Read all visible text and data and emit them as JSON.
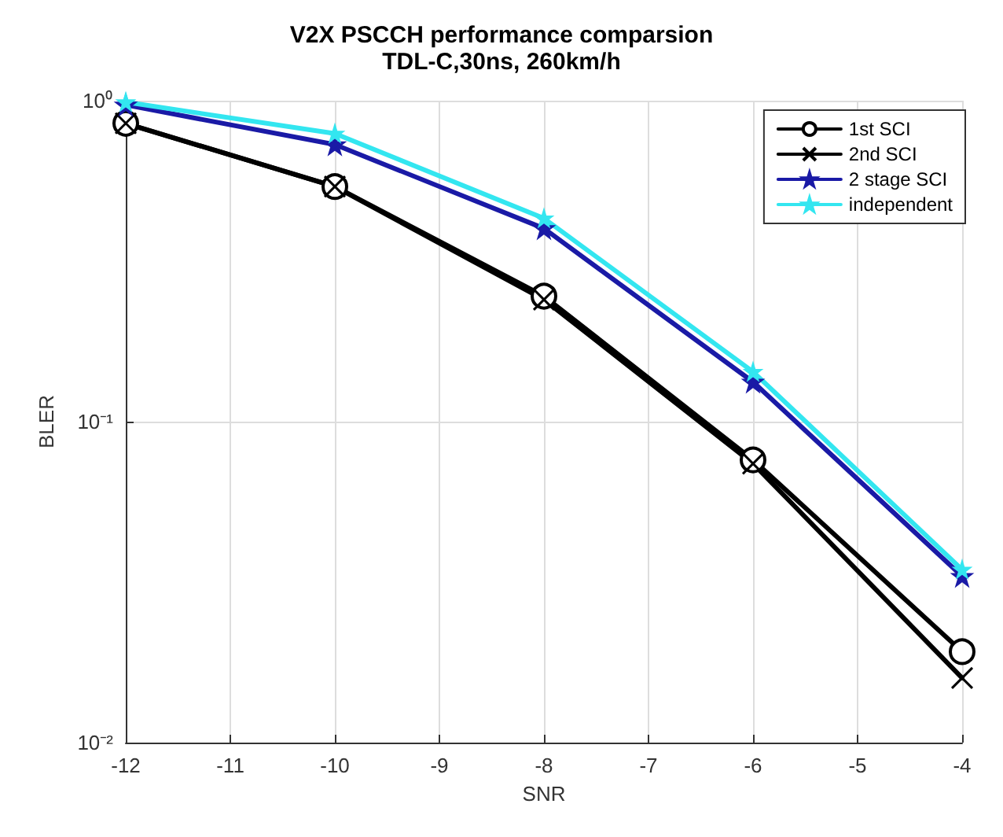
{
  "chart_data": {
    "type": "line",
    "title": "V2X PSCCH performance comparsion",
    "subtitle": "TDL-C,30ns, 260km/h",
    "xlabel": "SNR",
    "ylabel": "BLER",
    "x": [
      -12,
      -10,
      -8,
      -6,
      -4
    ],
    "series": [
      {
        "name": "1st SCI",
        "color": "#000000",
        "marker": "circle",
        "values": [
          0.85,
          0.54,
          0.246,
          0.076,
          0.0192
        ]
      },
      {
        "name": "2nd SCI",
        "color": "#000000",
        "marker": "cross",
        "values": [
          0.85,
          0.54,
          0.24,
          0.074,
          0.0159
        ]
      },
      {
        "name": "2 stage SCI",
        "color": "#1a1aa6",
        "marker": "star",
        "values": [
          0.97,
          0.73,
          0.4,
          0.133,
          0.033
        ]
      },
      {
        "name": "independent",
        "color": "#33e6f0",
        "marker": "star",
        "values": [
          0.99,
          0.79,
          0.43,
          0.143,
          0.0346
        ]
      }
    ],
    "xlim": [
      -12,
      -4
    ],
    "xticks": [
      -12,
      -11,
      -10,
      -9,
      -8,
      -7,
      -6,
      -5,
      -4
    ],
    "ylim": [
      0.01,
      1
    ],
    "yticks": [
      {
        "value": 0.01,
        "label": "10⁻²"
      },
      {
        "value": 0.1,
        "label": "10⁻¹"
      },
      {
        "value": 1,
        "label": "10⁰"
      }
    ],
    "log": "y",
    "grid": true,
    "legend": "top right",
    "line_style": "solid"
  }
}
